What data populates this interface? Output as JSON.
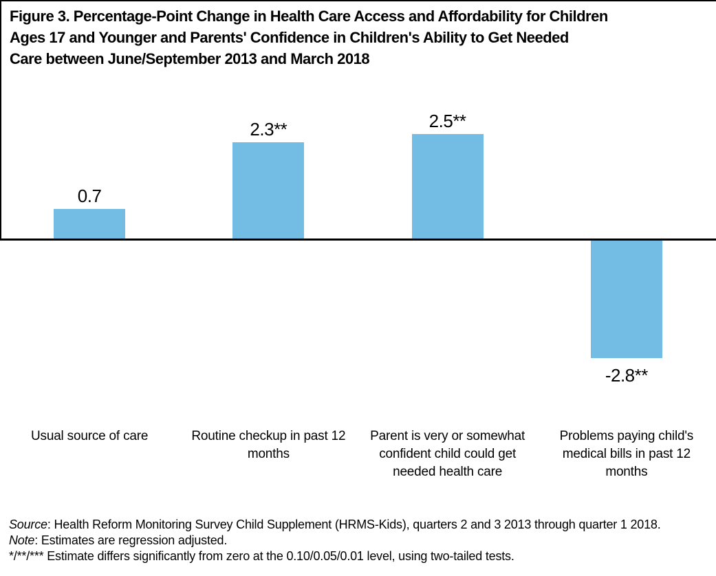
{
  "figure": {
    "title_lines": [
      "Figure 3. Percentage-Point Change in Health Care Access and Affordability for Children",
      "Ages 17 and Younger and Parents' Confidence in Children's Ability to Get Needed",
      "Care between June/September 2013 and March 2018"
    ]
  },
  "chart_data": {
    "type": "bar",
    "title": "Figure 3. Percentage-Point Change in Health Care Access and Affordability for Children Ages 17 and Younger and Parents' Confidence in Children's Ability to Get Needed Care between June/September 2013 and March 2018",
    "categories": [
      "Usual source of care",
      "Routine checkup in past 12 months",
      "Parent is very or somewhat confident child could get needed health care",
      "Problems paying child's medical bills in past 12 months"
    ],
    "values": [
      0.7,
      2.3,
      2.5,
      -2.8
    ],
    "value_labels": [
      "0.7",
      "2.3**",
      "2.5**",
      "-2.8**"
    ],
    "significance": [
      "",
      "**",
      "**",
      "**"
    ],
    "bar_color": "#73BCE4",
    "axis_color": "#000000",
    "xlabel": "",
    "ylabel": "",
    "ylim": [
      -3.5,
      4.1
    ],
    "baseline": 0,
    "grid": false,
    "legend": false
  },
  "footer": {
    "source_label": "Source",
    "source_rest": ": Health Reform Monitoring Survey Child Supplement (HRMS-Kids), quarters 2 and 3 2013 through quarter 1 2018.",
    "note_label": "Note",
    "note_rest": ": Estimates are regression adjusted.",
    "significance_note": "*/**/*** Estimate differs significantly from zero at the 0.10/0.05/0.01 level, using two-tailed tests."
  }
}
